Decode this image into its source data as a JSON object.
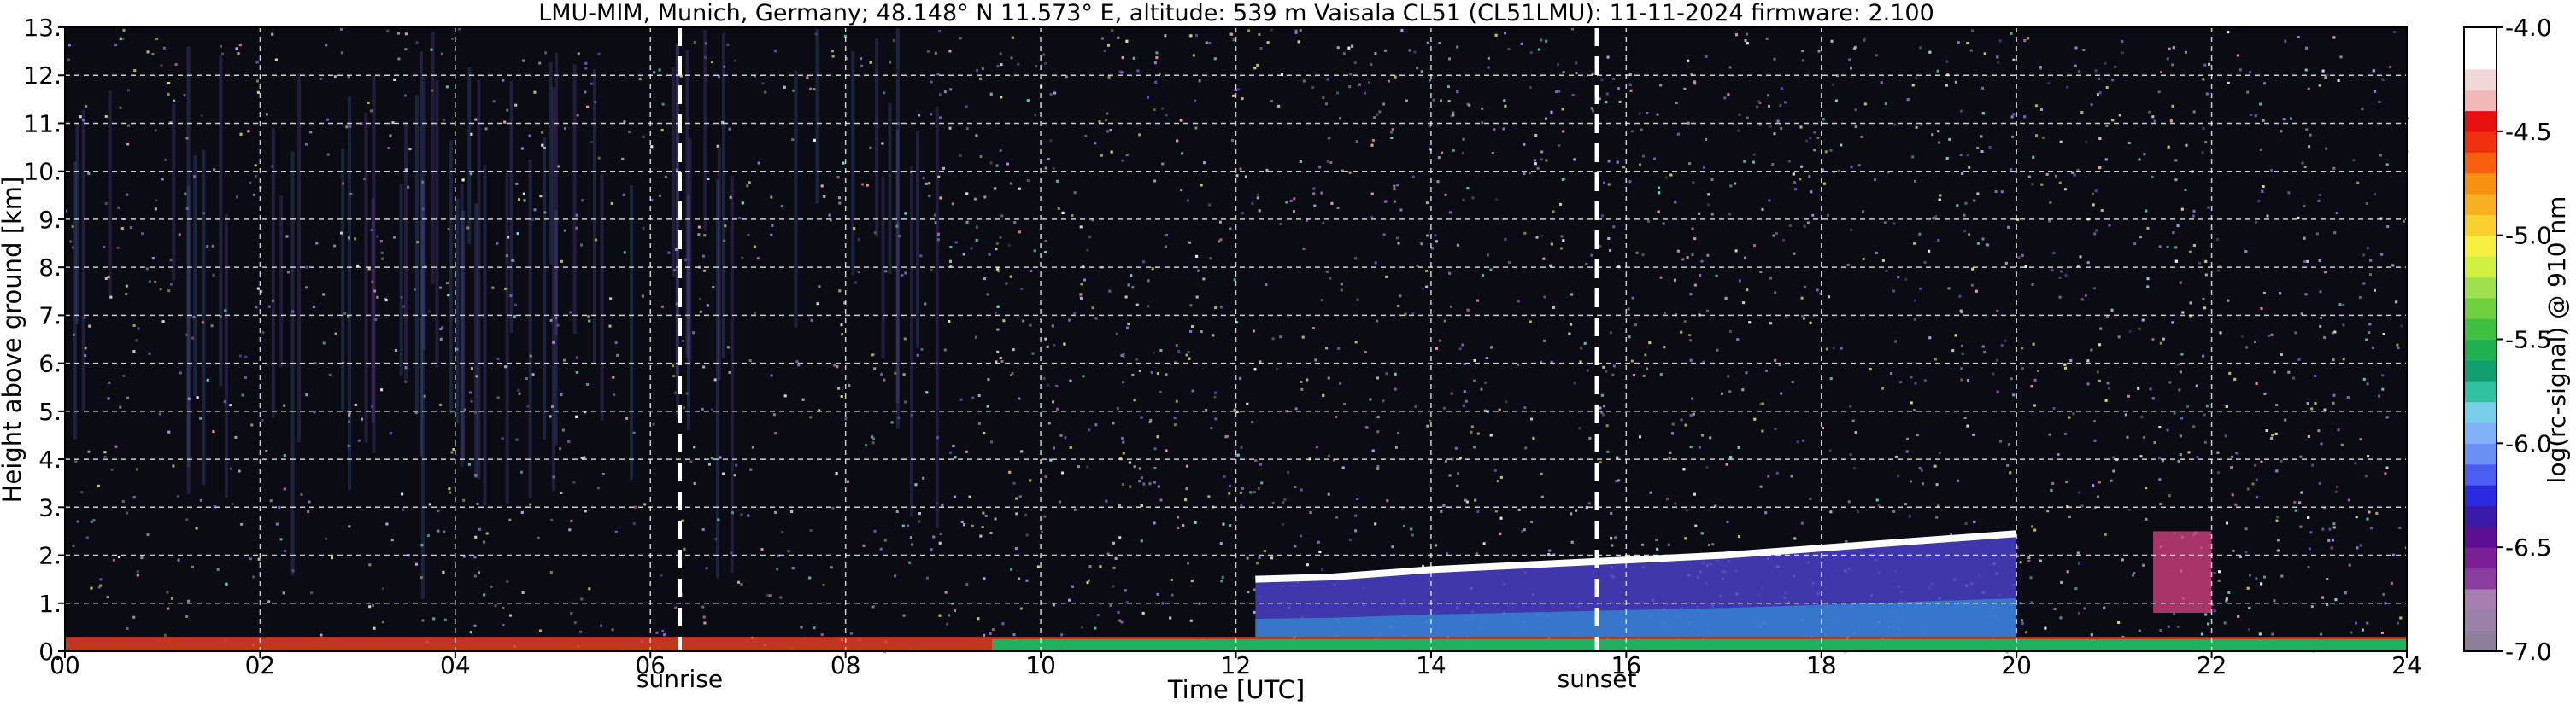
{
  "chart_data": {
    "type": "heatmap",
    "title": "LMU-MIM, Munich, Germany; 48.148° N 11.573° E, altitude: 539 m    Vaisala CL51 (CL51LMU): 11-11-2024    firmware: 2.100",
    "xlabel": "Time [UTC]",
    "ylabel": "Height above ground [km]",
    "xlim": [
      0,
      24
    ],
    "ylim": [
      0,
      13
    ],
    "x_ticks": [
      "00",
      "02",
      "04",
      "06",
      "08",
      "10",
      "12",
      "14",
      "16",
      "18",
      "20",
      "22",
      "24"
    ],
    "x_tick_values": [
      0,
      2,
      4,
      6,
      8,
      10,
      12,
      14,
      16,
      18,
      20,
      22,
      24
    ],
    "y_ticks": [
      "0.",
      "1.",
      "2.",
      "3.",
      "4.",
      "5.",
      "6.",
      "7.",
      "8.",
      "9.",
      "10.",
      "11.",
      "12.",
      "13."
    ],
    "y_tick_values": [
      0,
      1,
      2,
      3,
      4,
      5,
      6,
      7,
      8,
      9,
      10,
      11,
      12,
      13
    ],
    "grid": true,
    "markers": [
      {
        "label": "sunrise",
        "x": 6.3
      },
      {
        "label": "sunset",
        "x": 15.7
      }
    ],
    "colorbar": {
      "label": "log(rc-signal) @ 910 nm",
      "range": [
        -7.0,
        -4.0
      ],
      "ticks": [
        "-7.0",
        "-6.5",
        "-6.0",
        "-5.5",
        "-5.0",
        "-4.5",
        "-4.0"
      ],
      "tick_values": [
        -7.0,
        -6.5,
        -6.0,
        -5.5,
        -5.0,
        -4.5,
        -4.0
      ],
      "colors": [
        "#8c7f99",
        "#9a7fa6",
        "#a67fb0",
        "#8a3fa0",
        "#7a1f95",
        "#5a1090",
        "#3a1aa8",
        "#2a2ae0",
        "#4a5ff0",
        "#6a8ff5",
        "#80b0f5",
        "#78d0e8",
        "#30c0a0",
        "#10a070",
        "#20b050",
        "#40c040",
        "#70d040",
        "#a0e050",
        "#d0f040",
        "#f8f040",
        "#f8d030",
        "#f8b020",
        "#f89010",
        "#f86010",
        "#f03010",
        "#e81010",
        "#f0b8b8",
        "#f0d8d8",
        "#ffffff",
        "#ffffff"
      ]
    },
    "features": [
      {
        "name": "boundary layer",
        "x_range": [
          0,
          24
        ],
        "height_km": [
          0,
          0.3
        ]
      },
      {
        "name": "aerosol layer top",
        "x": [
          12.2,
          13.0,
          14.0,
          15.0,
          16.0,
          17.0,
          18.0,
          19.0,
          20.0
        ],
        "height_km": [
          1.5,
          1.55,
          1.7,
          1.8,
          1.9,
          2.0,
          2.15,
          2.3,
          2.45
        ]
      },
      {
        "name": "cloud patch",
        "x_range": [
          21.4,
          22.0
        ],
        "height_km": [
          0.8,
          2.5
        ]
      }
    ]
  }
}
